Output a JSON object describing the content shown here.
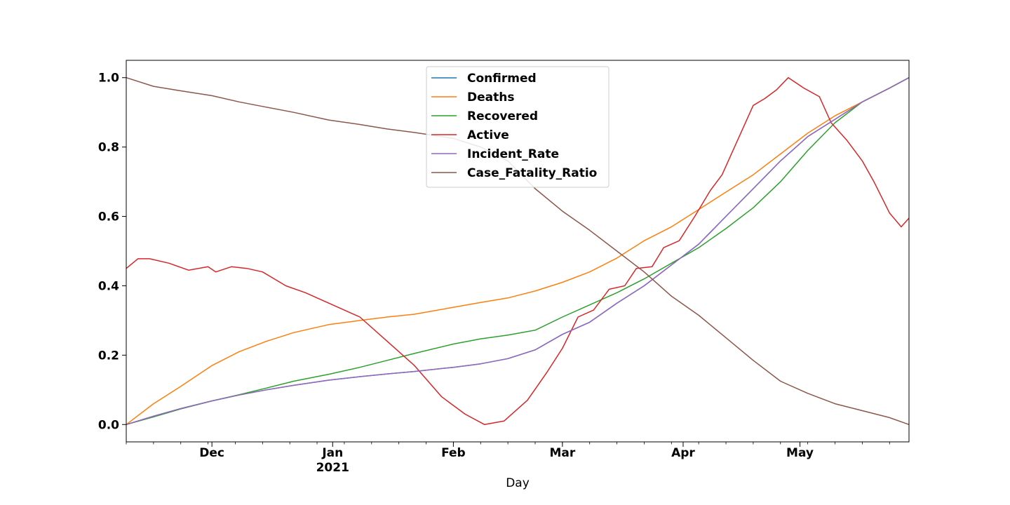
{
  "chart_data": {
    "type": "line",
    "title": "",
    "xlabel": "Day",
    "ylabel": "",
    "x_range": [
      "2020-11-09",
      "2021-05-29"
    ],
    "ylim": [
      -0.05,
      1.05
    ],
    "grid": false,
    "legend_position": "top-center",
    "y_ticks": [
      {
        "value": 0.0,
        "label": "0.0"
      },
      {
        "value": 0.2,
        "label": "0.2"
      },
      {
        "value": 0.4,
        "label": "0.4"
      },
      {
        "value": 0.6,
        "label": "0.6"
      },
      {
        "value": 0.8,
        "label": "0.8"
      },
      {
        "value": 1.0,
        "label": "1.0"
      }
    ],
    "x_ticks": [
      {
        "date": "2020-12-01",
        "label": "Dec",
        "sublabel": ""
      },
      {
        "date": "2021-01-01",
        "label": "Jan",
        "sublabel": "2021"
      },
      {
        "date": "2021-02-01",
        "label": "Feb",
        "sublabel": ""
      },
      {
        "date": "2021-03-01",
        "label": "Mar",
        "sublabel": ""
      },
      {
        "date": "2021-04-01",
        "label": "Apr",
        "sublabel": ""
      },
      {
        "date": "2021-05-01",
        "label": "May",
        "sublabel": ""
      }
    ],
    "series": [
      {
        "name": "Confirmed",
        "color": "#1f77b4",
        "points": [
          [
            "2020-11-09",
            0.0
          ],
          [
            "2020-11-16",
            0.024
          ],
          [
            "2020-11-23",
            0.046
          ],
          [
            "2020-12-01",
            0.068
          ],
          [
            "2020-12-08",
            0.085
          ],
          [
            "2020-12-15",
            0.1
          ],
          [
            "2020-12-22",
            0.113
          ],
          [
            "2020-12-31",
            0.128
          ],
          [
            "2021-01-08",
            0.138
          ],
          [
            "2021-01-15",
            0.146
          ],
          [
            "2021-01-22",
            0.153
          ],
          [
            "2021-02-01",
            0.165
          ],
          [
            "2021-02-08",
            0.175
          ],
          [
            "2021-02-15",
            0.19
          ],
          [
            "2021-02-22",
            0.215
          ],
          [
            "2021-03-01",
            0.26
          ],
          [
            "2021-03-08",
            0.295
          ],
          [
            "2021-03-15",
            0.35
          ],
          [
            "2021-03-22",
            0.4
          ],
          [
            "2021-03-29",
            0.46
          ],
          [
            "2021-04-05",
            0.52
          ],
          [
            "2021-04-12",
            0.6
          ],
          [
            "2021-04-19",
            0.68
          ],
          [
            "2021-04-26",
            0.76
          ],
          [
            "2021-05-03",
            0.83
          ],
          [
            "2021-05-10",
            0.88
          ],
          [
            "2021-05-17",
            0.93
          ],
          [
            "2021-05-24",
            0.97
          ],
          [
            "2021-05-29",
            1.0
          ]
        ]
      },
      {
        "name": "Deaths",
        "color": "#ff7f0e",
        "points": [
          [
            "2020-11-09",
            0.0
          ],
          [
            "2020-11-16",
            0.06
          ],
          [
            "2020-11-23",
            0.11
          ],
          [
            "2020-12-01",
            0.17
          ],
          [
            "2020-12-08",
            0.21
          ],
          [
            "2020-12-15",
            0.24
          ],
          [
            "2020-12-22",
            0.265
          ],
          [
            "2020-12-31",
            0.288
          ],
          [
            "2021-01-08",
            0.3
          ],
          [
            "2021-01-15",
            0.31
          ],
          [
            "2021-01-22",
            0.318
          ],
          [
            "2021-02-01",
            0.338
          ],
          [
            "2021-02-08",
            0.352
          ],
          [
            "2021-02-15",
            0.365
          ],
          [
            "2021-02-22",
            0.385
          ],
          [
            "2021-03-01",
            0.41
          ],
          [
            "2021-03-08",
            0.44
          ],
          [
            "2021-03-15",
            0.48
          ],
          [
            "2021-03-22",
            0.53
          ],
          [
            "2021-03-29",
            0.57
          ],
          [
            "2021-04-05",
            0.62
          ],
          [
            "2021-04-12",
            0.67
          ],
          [
            "2021-04-19",
            0.72
          ],
          [
            "2021-04-26",
            0.78
          ],
          [
            "2021-05-03",
            0.84
          ],
          [
            "2021-05-10",
            0.89
          ],
          [
            "2021-05-17",
            0.93
          ],
          [
            "2021-05-24",
            0.97
          ],
          [
            "2021-05-29",
            1.0
          ]
        ]
      },
      {
        "name": "Recovered",
        "color": "#2ca02c",
        "points": [
          [
            "2020-11-09",
            0.0
          ],
          [
            "2020-11-16",
            0.022
          ],
          [
            "2020-11-23",
            0.045
          ],
          [
            "2020-12-01",
            0.068
          ],
          [
            "2020-12-08",
            0.086
          ],
          [
            "2020-12-15",
            0.105
          ],
          [
            "2020-12-22",
            0.125
          ],
          [
            "2020-12-31",
            0.145
          ],
          [
            "2021-01-08",
            0.165
          ],
          [
            "2021-01-15",
            0.185
          ],
          [
            "2021-01-22",
            0.205
          ],
          [
            "2021-02-01",
            0.232
          ],
          [
            "2021-02-08",
            0.247
          ],
          [
            "2021-02-15",
            0.258
          ],
          [
            "2021-02-22",
            0.272
          ],
          [
            "2021-03-01",
            0.31
          ],
          [
            "2021-03-08",
            0.345
          ],
          [
            "2021-03-15",
            0.38
          ],
          [
            "2021-03-22",
            0.42
          ],
          [
            "2021-03-29",
            0.465
          ],
          [
            "2021-04-05",
            0.51
          ],
          [
            "2021-04-12",
            0.565
          ],
          [
            "2021-04-19",
            0.625
          ],
          [
            "2021-04-26",
            0.7
          ],
          [
            "2021-05-03",
            0.79
          ],
          [
            "2021-05-10",
            0.87
          ],
          [
            "2021-05-17",
            0.93
          ],
          [
            "2021-05-24",
            0.97
          ],
          [
            "2021-05-29",
            1.0
          ]
        ]
      },
      {
        "name": "Active",
        "color": "#d62728",
        "points": [
          [
            "2020-11-09",
            0.45
          ],
          [
            "2020-11-12",
            0.478
          ],
          [
            "2020-11-15",
            0.478
          ],
          [
            "2020-11-20",
            0.465
          ],
          [
            "2020-11-25",
            0.445
          ],
          [
            "2020-11-30",
            0.455
          ],
          [
            "2020-12-02",
            0.44
          ],
          [
            "2020-12-06",
            0.455
          ],
          [
            "2020-12-10",
            0.45
          ],
          [
            "2020-12-14",
            0.44
          ],
          [
            "2020-12-20",
            0.4
          ],
          [
            "2020-12-25",
            0.38
          ],
          [
            "2020-12-31",
            0.35
          ],
          [
            "2021-01-08",
            0.31
          ],
          [
            "2021-01-15",
            0.24
          ],
          [
            "2021-01-22",
            0.17
          ],
          [
            "2021-01-29",
            0.08
          ],
          [
            "2021-02-04",
            0.03
          ],
          [
            "2021-02-09",
            0.0
          ],
          [
            "2021-02-14",
            0.01
          ],
          [
            "2021-02-20",
            0.07
          ],
          [
            "2021-02-25",
            0.15
          ],
          [
            "2021-03-01",
            0.22
          ],
          [
            "2021-03-05",
            0.31
          ],
          [
            "2021-03-09",
            0.33
          ],
          [
            "2021-03-13",
            0.39
          ],
          [
            "2021-03-17",
            0.4
          ],
          [
            "2021-03-20",
            0.45
          ],
          [
            "2021-03-24",
            0.455
          ],
          [
            "2021-03-27",
            0.51
          ],
          [
            "2021-03-31",
            0.53
          ],
          [
            "2021-04-04",
            0.6
          ],
          [
            "2021-04-08",
            0.675
          ],
          [
            "2021-04-11",
            0.72
          ],
          [
            "2021-04-15",
            0.82
          ],
          [
            "2021-04-19",
            0.92
          ],
          [
            "2021-04-22",
            0.94
          ],
          [
            "2021-04-25",
            0.965
          ],
          [
            "2021-04-28",
            1.0
          ],
          [
            "2021-05-02",
            0.97
          ],
          [
            "2021-05-06",
            0.945
          ],
          [
            "2021-05-09",
            0.87
          ],
          [
            "2021-05-13",
            0.82
          ],
          [
            "2021-05-17",
            0.76
          ],
          [
            "2021-05-20",
            0.7
          ],
          [
            "2021-05-24",
            0.61
          ],
          [
            "2021-05-27",
            0.57
          ],
          [
            "2021-05-29",
            0.595
          ]
        ]
      },
      {
        "name": "Incident_Rate",
        "color": "#9467bd",
        "points": [
          [
            "2020-11-09",
            0.0
          ],
          [
            "2020-11-16",
            0.024
          ],
          [
            "2020-11-23",
            0.046
          ],
          [
            "2020-12-01",
            0.068
          ],
          [
            "2020-12-08",
            0.085
          ],
          [
            "2020-12-15",
            0.1
          ],
          [
            "2020-12-22",
            0.113
          ],
          [
            "2020-12-31",
            0.128
          ],
          [
            "2021-01-08",
            0.138
          ],
          [
            "2021-01-15",
            0.146
          ],
          [
            "2021-01-22",
            0.153
          ],
          [
            "2021-02-01",
            0.165
          ],
          [
            "2021-02-08",
            0.175
          ],
          [
            "2021-02-15",
            0.19
          ],
          [
            "2021-02-22",
            0.215
          ],
          [
            "2021-03-01",
            0.26
          ],
          [
            "2021-03-08",
            0.295
          ],
          [
            "2021-03-15",
            0.35
          ],
          [
            "2021-03-22",
            0.4
          ],
          [
            "2021-03-29",
            0.46
          ],
          [
            "2021-04-05",
            0.52
          ],
          [
            "2021-04-12",
            0.6
          ],
          [
            "2021-04-19",
            0.68
          ],
          [
            "2021-04-26",
            0.76
          ],
          [
            "2021-05-03",
            0.83
          ],
          [
            "2021-05-10",
            0.88
          ],
          [
            "2021-05-17",
            0.93
          ],
          [
            "2021-05-24",
            0.97
          ],
          [
            "2021-05-29",
            1.0
          ]
        ]
      },
      {
        "name": "Case_Fatality_Ratio",
        "color": "#8c564b",
        "points": [
          [
            "2020-11-09",
            1.0
          ],
          [
            "2020-11-16",
            0.975
          ],
          [
            "2020-11-23",
            0.962
          ],
          [
            "2020-12-01",
            0.948
          ],
          [
            "2020-12-08",
            0.93
          ],
          [
            "2020-12-15",
            0.915
          ],
          [
            "2020-12-22",
            0.9
          ],
          [
            "2020-12-31",
            0.878
          ],
          [
            "2021-01-08",
            0.865
          ],
          [
            "2021-01-15",
            0.852
          ],
          [
            "2021-01-22",
            0.842
          ],
          [
            "2021-02-01",
            0.825
          ],
          [
            "2021-02-08",
            0.8
          ],
          [
            "2021-02-15",
            0.76
          ],
          [
            "2021-02-22",
            0.68
          ],
          [
            "2021-03-01",
            0.615
          ],
          [
            "2021-03-08",
            0.56
          ],
          [
            "2021-03-15",
            0.5
          ],
          [
            "2021-03-22",
            0.44
          ],
          [
            "2021-03-29",
            0.37
          ],
          [
            "2021-04-05",
            0.315
          ],
          [
            "2021-04-12",
            0.25
          ],
          [
            "2021-04-19",
            0.185
          ],
          [
            "2021-04-26",
            0.125
          ],
          [
            "2021-05-03",
            0.09
          ],
          [
            "2021-05-10",
            0.06
          ],
          [
            "2021-05-17",
            0.04
          ],
          [
            "2021-05-24",
            0.02
          ],
          [
            "2021-05-29",
            0.0
          ]
        ]
      }
    ]
  }
}
